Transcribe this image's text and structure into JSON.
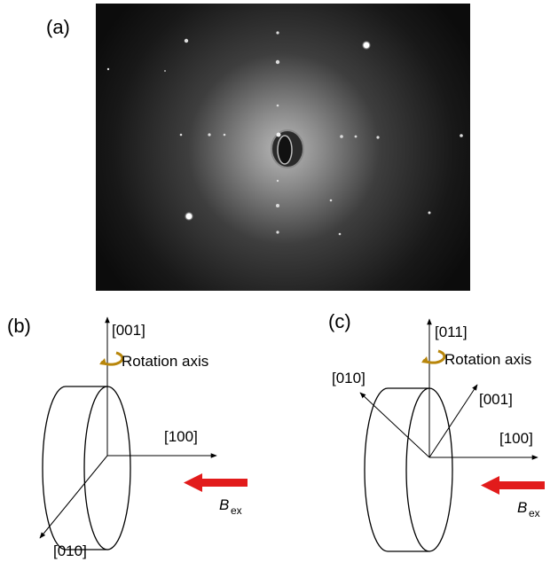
{
  "panel_a": {
    "label": "(a)"
  },
  "panel_b": {
    "label": "(b)",
    "axis_up": "[001]",
    "axis_right": "[100]",
    "axis_diag": "[010]",
    "rotation_label": "Rotation axis",
    "field_label": "B",
    "field_sub": "ex"
  },
  "panel_c": {
    "label": "(c)",
    "axis_up": "[011]",
    "axis_right": "[100]",
    "axis_upleft": "[010]",
    "axis_upright": "[001]",
    "rotation_label": "Rotation axis",
    "field_label": "B",
    "field_sub": "ex"
  },
  "colors": {
    "rotation_arrow": "#b8860b",
    "field_arrow": "#e21b1b",
    "pattern_background": "#0d0d0d"
  }
}
